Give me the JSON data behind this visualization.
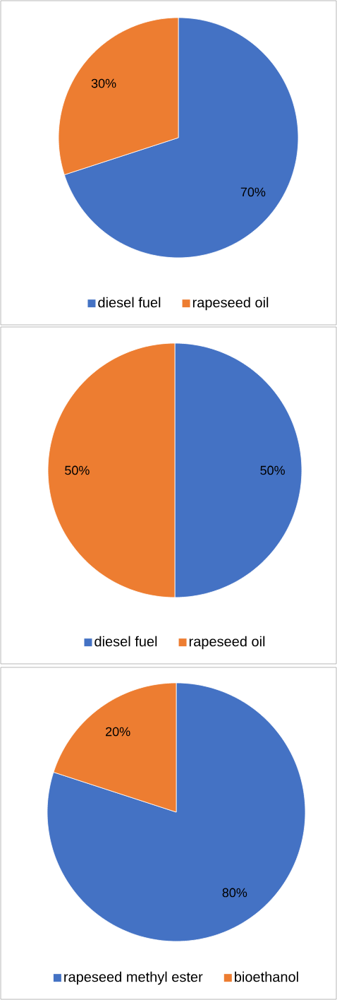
{
  "chart_data": [
    {
      "type": "pie",
      "categories": [
        "diesel fuel",
        "rapeseed oil"
      ],
      "values": [
        70,
        30
      ],
      "value_labels": [
        "70%",
        "30%"
      ],
      "colors": [
        "#4472c4",
        "#ed7d31"
      ],
      "legend": "bottom"
    },
    {
      "type": "pie",
      "categories": [
        "diesel fuel",
        "rapeseed oil"
      ],
      "values": [
        50,
        50
      ],
      "value_labels": [
        "50%",
        "50%"
      ],
      "colors": [
        "#4472c4",
        "#ed7d31"
      ],
      "legend": "bottom"
    },
    {
      "type": "pie",
      "categories": [
        "rapeseed methyl ester",
        "bioethanol"
      ],
      "values": [
        80,
        20
      ],
      "value_labels": [
        "80%",
        "20%"
      ],
      "colors": [
        "#4472c4",
        "#ed7d31"
      ],
      "legend": "bottom"
    }
  ]
}
